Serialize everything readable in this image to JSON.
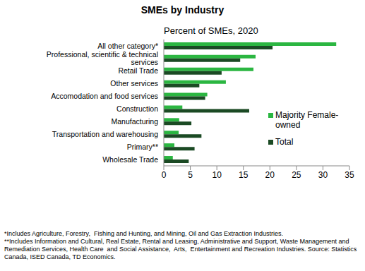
{
  "chart_data": {
    "type": "bar",
    "orientation": "horizontal",
    "title": "SMEs by Industry",
    "subtitle": "Percent of SMEs, 2020",
    "categories": [
      "All other category*",
      "Professional, scientific & technical services",
      "Retail Trade",
      "Other services",
      "Accomodation and food services",
      "Construction",
      "Manufacturing",
      "Transportation and warehousing",
      "Primary**",
      "Wholesale Trade"
    ],
    "series": [
      {
        "name": "Majority Female-owned",
        "color": "#2bb641",
        "values": [
          32.5,
          17.3,
          16.9,
          11.7,
          8.2,
          3.5,
          2.9,
          2.8,
          2.0,
          1.7
        ]
      },
      {
        "name": "Total",
        "color": "#1b4a24",
        "values": [
          20.5,
          14.4,
          10.9,
          6.7,
          7.8,
          16.1,
          5.2,
          7.1,
          5.8,
          4.7
        ]
      }
    ],
    "xlim": [
      0,
      35
    ],
    "xticks": [
      0,
      5,
      10,
      15,
      20,
      25,
      30,
      35
    ],
    "legend": "right",
    "grid": false,
    "annotations": [
      "*Includes Agriculture, Forestry,  Fishing and Hunting, and Mining, Oil and Gas Extraction Industries.",
      "**Includes Information and Cultural, Real Estate, Rental and Leasing, Administrative and Support, Waste Management and Remediation Services, Health Care  and Social Assistance,  Arts,  Entertainment and Recreation Industries. Source: Statistics Canada, ISED Canada, TD Economics."
    ]
  }
}
